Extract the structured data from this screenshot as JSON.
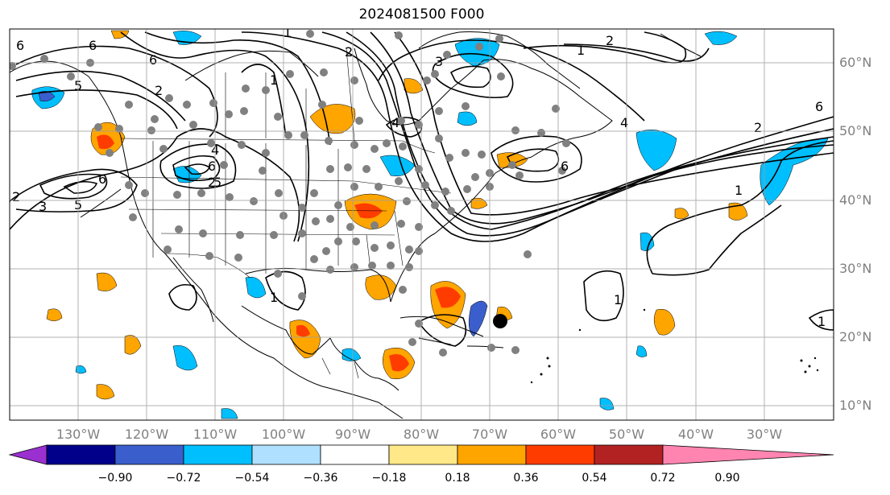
{
  "title": "2024081500 F000",
  "lat_labels": [
    "60°N",
    "50°N",
    "40°N",
    "30°N",
    "20°N",
    "10°N"
  ],
  "lon_labels": [
    "130°W",
    "120°W",
    "110°W",
    "100°W",
    "90°W",
    "80°W",
    "70°W",
    "60°W",
    "50°W",
    "40°W",
    "30°W"
  ],
  "colorbar": {
    "tick_labels": [
      "−0.90",
      "−0.72",
      "−0.54",
      "−0.36",
      "−0.18",
      "0.18",
      "0.36",
      "0.54",
      "0.72",
      "0.90"
    ],
    "colors": [
      "#9b30d0",
      "#00008b",
      "#3a5fcd",
      "#00bfff",
      "#b0e0ff",
      "#ffffff",
      "#ffe888",
      "#ffa500",
      "#ff3c00",
      "#b22222",
      "#ff85b0"
    ]
  },
  "contour_labels": [
    "6",
    "5",
    "2",
    "1",
    "2",
    "1",
    "2",
    "6",
    "1",
    "4",
    "3",
    "2",
    "6",
    "5",
    "2",
    "3",
    "5",
    "6",
    "4",
    "2",
    "6",
    "1",
    "4",
    "6",
    "6",
    "1",
    "1",
    "1"
  ],
  "colors": {
    "positive": "#ffa500",
    "strong_positive": "#ff3c00",
    "negative": "#00bfff",
    "strong_negative": "#3a5fcd",
    "marker": "#808080"
  }
}
